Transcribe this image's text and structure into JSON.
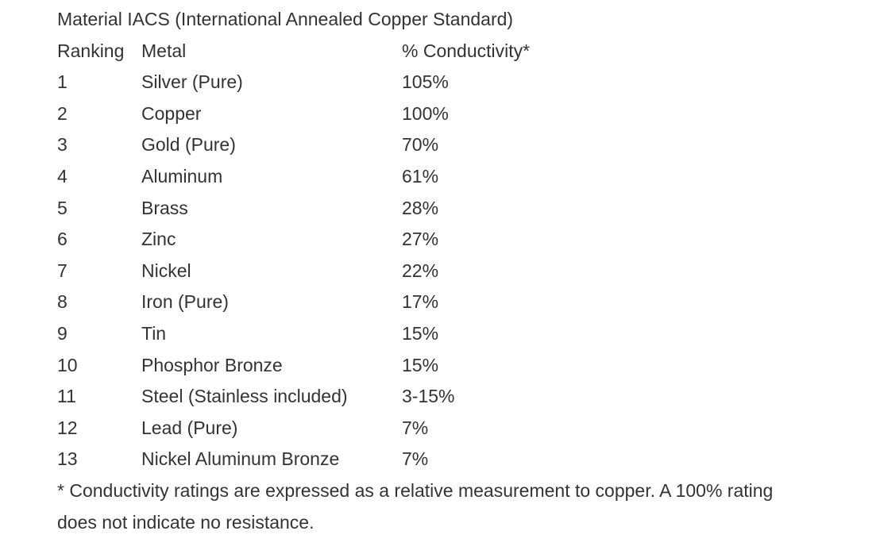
{
  "title": "Material IACS (International Annealed Copper Standard)",
  "headers": {
    "ranking": "Ranking",
    "metal": "Metal",
    "conductivity": "% Conductivity*"
  },
  "rows": [
    {
      "rank": "1",
      "metal": "Silver (Pure)",
      "conductivity": "105%"
    },
    {
      "rank": "2",
      "metal": "Copper",
      "conductivity": "100%"
    },
    {
      "rank": "3",
      "metal": "Gold (Pure)",
      "conductivity": "70%"
    },
    {
      "rank": "4",
      "metal": "Aluminum",
      "conductivity": "61%"
    },
    {
      "rank": "5",
      "metal": "Brass",
      "conductivity": "28%"
    },
    {
      "rank": "6",
      "metal": "Zinc",
      "conductivity": "27%"
    },
    {
      "rank": "7",
      "metal": "Nickel",
      "conductivity": "22%"
    },
    {
      "rank": "8",
      "metal": "Iron (Pure)",
      "conductivity": "17%"
    },
    {
      "rank": "9",
      "metal": "Tin",
      "conductivity": "15%"
    },
    {
      "rank": "10",
      "metal": "Phosphor Bronze",
      "conductivity": "15%"
    },
    {
      "rank": "11",
      "metal": "Steel (Stainless included)",
      "conductivity": "3-15%"
    },
    {
      "rank": "12",
      "metal": "Lead (Pure)",
      "conductivity": "7%"
    },
    {
      "rank": "13",
      "metal": "Nickel Aluminum Bronze",
      "conductivity": "7%"
    }
  ],
  "footnote": [
    "* Conductivity ratings are expressed as a relative measurement to copper. A 100% rating",
    "does not indicate no resistance."
  ],
  "colors": {
    "text": "#333333",
    "background": "#ffffff"
  }
}
